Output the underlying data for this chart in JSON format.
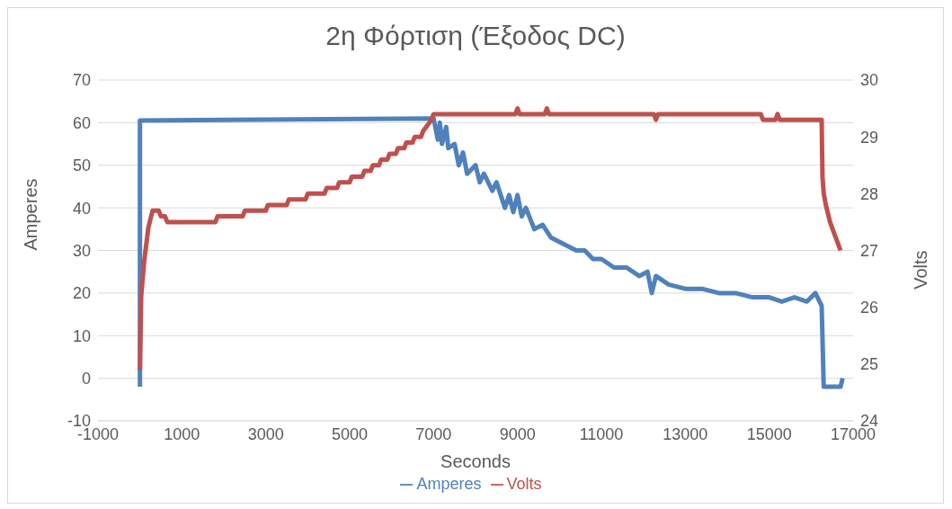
{
  "chart_data": {
    "type": "line",
    "title": "2η Φόρτιση (Έξοδος DC)",
    "xlabel": "Seconds",
    "ylabel": "Amperes",
    "y2label": "Volts",
    "xlim": [
      -1000,
      17000
    ],
    "xticks": [
      -1000,
      1000,
      3000,
      5000,
      7000,
      9000,
      11000,
      13000,
      15000,
      17000
    ],
    "ylim": [
      -10,
      70
    ],
    "yticks": [
      -10,
      0,
      10,
      20,
      30,
      40,
      50,
      60,
      70
    ],
    "y2lim": [
      24,
      30
    ],
    "y2ticks": [
      24,
      25,
      26,
      27,
      28,
      29,
      30
    ],
    "grid": "y",
    "legend": "bottom",
    "marker": "none",
    "line_style": "solid",
    "series": [
      {
        "name": "Amperes",
        "color": "#4f81bd",
        "x": [
          0,
          0,
          7000,
          7100,
          7150,
          7200,
          7300,
          7350,
          7500,
          7600,
          7700,
          7800,
          8000,
          8100,
          8200,
          8400,
          8500,
          8700,
          8800,
          8900,
          9000,
          9100,
          9200,
          9400,
          9600,
          9800,
          10000,
          10200,
          10400,
          10600,
          10800,
          11000,
          11300,
          11600,
          11900,
          12100,
          12200,
          12300,
          12600,
          13000,
          13400,
          13800,
          14200,
          14600,
          15000,
          15300,
          15600,
          15900,
          16100,
          16250,
          16300,
          16700,
          16750
        ],
        "values": [
          -2,
          60.5,
          61,
          56,
          60,
          55,
          59,
          54,
          55,
          50,
          53,
          48,
          50,
          46,
          48,
          44,
          46,
          40,
          43,
          39,
          43,
          38,
          40,
          35,
          36,
          33,
          32,
          31,
          30,
          30,
          28,
          28,
          26,
          26,
          24,
          25,
          20,
          24,
          22,
          21,
          21,
          20,
          20,
          19,
          19,
          18,
          19,
          18,
          20,
          17,
          -2,
          -2,
          0
        ]
      },
      {
        "name": "Volts",
        "color": "#c0504d",
        "axis": "y2",
        "x": [
          0,
          30,
          100,
          200,
          300,
          450,
          500,
          600,
          650,
          1800,
          1850,
          2450,
          2500,
          3000,
          3050,
          3500,
          3550,
          3950,
          4000,
          4400,
          4450,
          4700,
          4750,
          5000,
          5050,
          5300,
          5350,
          5500,
          5550,
          5700,
          5750,
          5900,
          5950,
          6100,
          6150,
          6300,
          6350,
          6500,
          6550,
          6700,
          6750,
          6850,
          6950,
          7000,
          8950,
          9000,
          9050,
          9650,
          9700,
          9750,
          12250,
          12300,
          12350,
          14800,
          14850,
          15150,
          15200,
          15250,
          16250,
          16270,
          16300,
          16350,
          16450,
          16550,
          16700
        ],
        "values": [
          24.9,
          26.2,
          26.8,
          27.4,
          27.7,
          27.7,
          27.6,
          27.6,
          27.5,
          27.5,
          27.6,
          27.6,
          27.7,
          27.7,
          27.8,
          27.8,
          27.9,
          27.9,
          28.0,
          28.0,
          28.1,
          28.1,
          28.2,
          28.2,
          28.3,
          28.3,
          28.4,
          28.4,
          28.5,
          28.5,
          28.6,
          28.6,
          28.7,
          28.7,
          28.8,
          28.8,
          28.9,
          28.9,
          29.0,
          29.0,
          29.1,
          29.2,
          29.3,
          29.4,
          29.4,
          29.5,
          29.4,
          29.4,
          29.5,
          29.4,
          29.4,
          29.3,
          29.4,
          29.4,
          29.3,
          29.3,
          29.4,
          29.3,
          29.3,
          28.3,
          28.0,
          27.8,
          27.5,
          27.3,
          27.0
        ]
      }
    ]
  }
}
